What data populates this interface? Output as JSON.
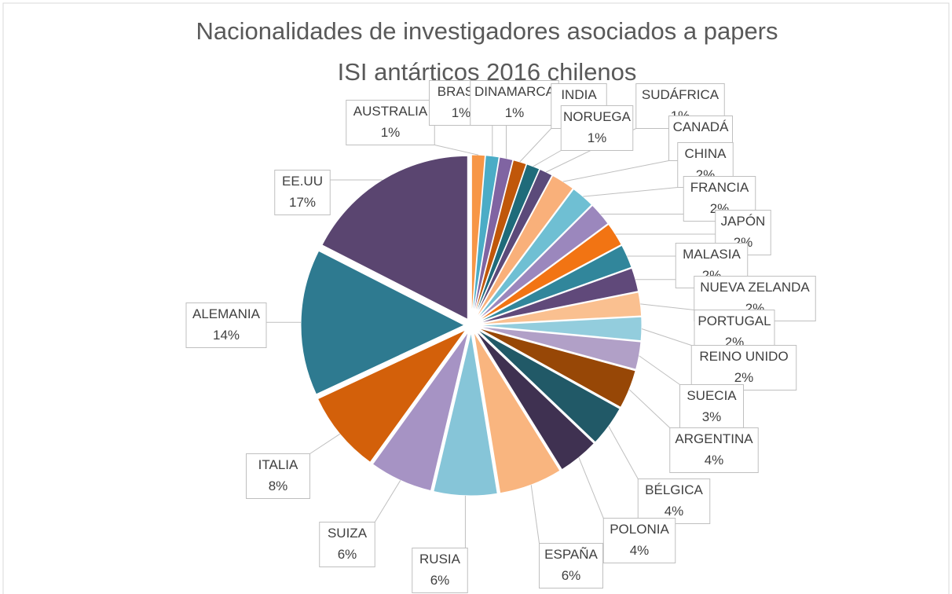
{
  "chart_data": {
    "type": "pie",
    "title": "Nacionalidades de investigadores asociados a papers ISI antárticos 2016 chilenos",
    "categories": [
      "AUSTRALIA",
      "BRASIL",
      "DINAMARCA",
      "INDIA",
      "NORUEGA",
      "SUDÁFRICA",
      "CANADÁ",
      "CHINA",
      "FRANCIA",
      "JAPÓN",
      "MALASIA",
      "NUEVA ZELANDA",
      "PORTUGAL",
      "REINO UNIDO",
      "SUECIA",
      "ARGENTINA",
      "BÉLGICA",
      "POLONIA",
      "ESPAÑA",
      "RUSIA",
      "SUIZA",
      "ITALIA",
      "ALEMANIA",
      "EE.UU"
    ],
    "values": [
      1.3,
      1.3,
      1.3,
      1.3,
      1.3,
      1.3,
      2.3,
      2.3,
      2.3,
      2.3,
      2.3,
      2.3,
      2.3,
      2.3,
      2.7,
      3.8,
      4.0,
      4.0,
      6.2,
      6.2,
      6.2,
      8.0,
      14.3,
      17.3
    ],
    "value_labels": [
      "1%",
      "1%",
      "1%",
      "1%",
      "1%",
      "1%",
      "2%",
      "2%",
      "2%",
      "2%",
      "2%",
      "2%",
      "2%",
      "2%",
      "3%",
      "4%",
      "4%",
      "4%",
      "6%",
      "6%",
      "6%",
      "8%",
      "14%",
      "17%"
    ],
    "colors": [
      "#f79646",
      "#4bacc6",
      "#8064a2",
      "#c0570a",
      "#1f6b7a",
      "#5b4a7a",
      "#f9b07a",
      "#6fbfd3",
      "#9b87bd",
      "#f27413",
      "#31869b",
      "#60497a",
      "#fac090",
      "#93cddd",
      "#b1a0c7",
      "#974706",
      "#215967",
      "#3f3151",
      "#f9b57f",
      "#86c5d8",
      "#a693c4",
      "#d3600a",
      "#2e7a90",
      "#5a4570"
    ]
  }
}
